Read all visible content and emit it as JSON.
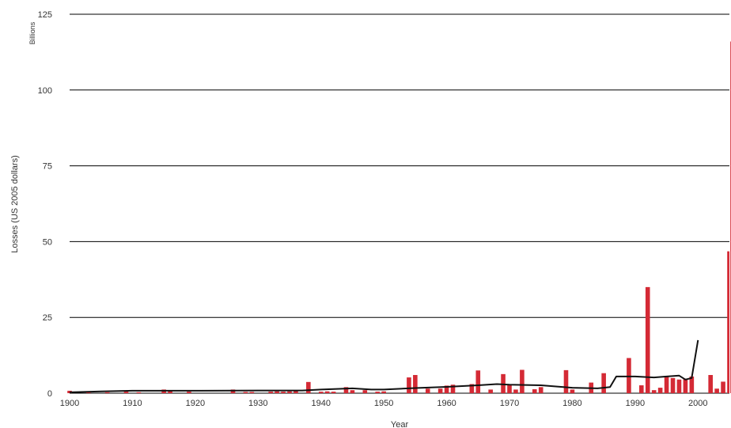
{
  "chart_data": {
    "type": "bar",
    "units_label": "Billions",
    "ylabel": "Losses (US 2005 dollars)",
    "xlabel": "Year",
    "xlim": [
      1900,
      2005
    ],
    "ylim": [
      0,
      125
    ],
    "x_ticks": [
      "1900",
      "1910",
      "1920",
      "1930",
      "1940",
      "1950",
      "1960",
      "1970",
      "1980",
      "1990",
      "2000"
    ],
    "y_ticks": [
      "0",
      "25",
      "50",
      "75",
      "100",
      "125"
    ],
    "grid": "horizontal",
    "bar_color": "#d42a35",
    "line_color": "#111111",
    "series": [
      {
        "type": "bar",
        "x": [
          1900,
          1903,
          1906,
          1909,
          1911,
          1915,
          1916,
          1919,
          1926,
          1928,
          1929,
          1932,
          1933,
          1934,
          1935,
          1936,
          1938,
          1940,
          1941,
          1942,
          1944,
          1945,
          1947,
          1949,
          1950,
          1954,
          1955,
          1957,
          1959,
          1960,
          1961,
          1964,
          1965,
          1967,
          1969,
          1970,
          1971,
          1972,
          1974,
          1975,
          1979,
          1980,
          1983,
          1985,
          1989,
          1991,
          1992,
          1993,
          1994,
          1995,
          1996,
          1997,
          1998,
          1999,
          2002,
          2003,
          2004,
          2005
        ],
        "values": [
          0.8,
          0.4,
          0.3,
          0.5,
          0.3,
          1.2,
          0.9,
          0.5,
          1.2,
          0.4,
          0.4,
          0.5,
          0.6,
          0.5,
          0.6,
          0.7,
          3.7,
          0.5,
          0.6,
          0.5,
          2.0,
          1.0,
          1.0,
          0.5,
          0.6,
          5.2,
          6.0,
          1.5,
          1.5,
          2.5,
          2.8,
          3.0,
          7.5,
          1.2,
          6.3,
          3.0,
          1.2,
          7.7,
          1.3,
          2.0,
          7.6,
          1.2,
          3.5,
          6.6,
          11.6,
          2.6,
          35.0,
          1.0,
          1.8,
          5.5,
          5.0,
          4.5,
          4.8,
          5.5,
          6.0,
          1.5,
          3.8,
          46.8
        ]
      },
      {
        "type": "bar",
        "x": [
          2005.5
        ],
        "values": [
          116.0
        ]
      },
      {
        "type": "line",
        "x": [
          1900,
          1905,
          1910,
          1920,
          1930,
          1937,
          1940,
          1945,
          1948,
          1950,
          1955,
          1960,
          1965,
          1968,
          1970,
          1975,
          1980,
          1984,
          1986,
          1987,
          1990,
          1993,
          1995,
          1997,
          1998,
          1999,
          2000
        ],
        "values": [
          0.3,
          0.6,
          0.8,
          0.8,
          0.9,
          0.9,
          1.2,
          1.6,
          1.2,
          1.2,
          1.7,
          2.1,
          2.6,
          3.0,
          2.8,
          2.6,
          1.8,
          1.6,
          2.0,
          5.5,
          5.5,
          5.2,
          5.5,
          5.8,
          4.5,
          5.0,
          17.5
        ]
      }
    ]
  }
}
